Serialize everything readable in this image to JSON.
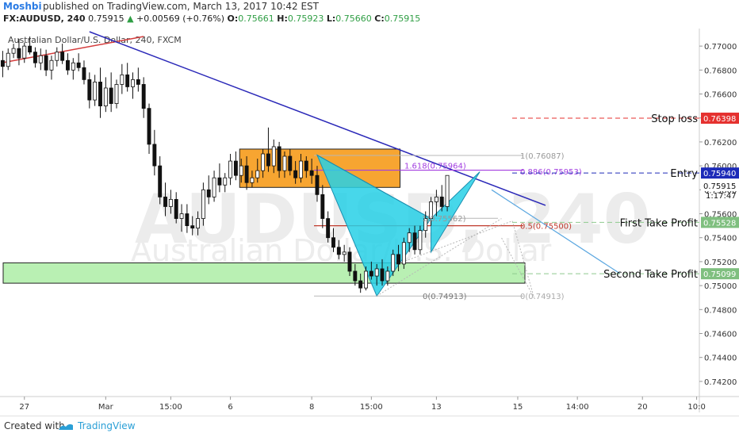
{
  "header": {
    "author": "Moshbi",
    "published": "published on TradingView.com, March 13, 2017 10:42 EST"
  },
  "ohlc": {
    "symbol": "FX:AUDUSD, 240",
    "last": "0.75915",
    "change": "+0.00569 (+0.76%)",
    "o_label": "O:",
    "o": "0.75661",
    "h_label": "H:",
    "h": "0.75923",
    "l_label": "L:",
    "l": "0.75660",
    "c_label": "C:",
    "c": "0.75915"
  },
  "footer": {
    "created": "Created with",
    "brand": "TradingView"
  },
  "chart_data": {
    "type": "candlestick",
    "title": "Australian Dollar/U.S. Dollar, 240, FXCM",
    "watermark_symbol": "AUDUSD, 240",
    "watermark_name": "Australian Dollar/U.S. Dollar",
    "ylim": [
      0.741,
      0.7712
    ],
    "yticks": [
      "0.77000",
      "0.76800",
      "0.76600",
      "0.76400",
      "0.76200",
      "0.76000",
      "0.75800",
      "0.75600",
      "0.75400",
      "0.75200",
      "0.75000",
      "0.74800",
      "0.74600",
      "0.74400",
      "0.74200"
    ],
    "ytick_values": [
      0.77,
      0.768,
      0.766,
      0.764,
      0.762,
      0.76,
      0.758,
      0.756,
      0.754,
      0.752,
      0.75,
      0.748,
      0.746,
      0.744,
      0.742
    ],
    "xticks": [
      {
        "label": "27",
        "i": 4
      },
      {
        "label": "Mar",
        "i": 19
      },
      {
        "label": "15:00",
        "i": 31
      },
      {
        "label": "6",
        "i": 42
      },
      {
        "label": "8",
        "i": 57
      },
      {
        "label": "15:00",
        "i": 68
      },
      {
        "label": "13",
        "i": 80
      },
      {
        "label": "15",
        "i": 95
      },
      {
        "label": "14:00",
        "i": 106
      },
      {
        "label": "20",
        "i": 118
      },
      {
        "label": "10:0",
        "i": 128
      }
    ],
    "n_slots": 129,
    "candles": [
      [
        0.7688,
        0.7696,
        0.7674,
        0.7683
      ],
      [
        0.7683,
        0.7698,
        0.768,
        0.7694
      ],
      [
        0.7694,
        0.7702,
        0.769,
        0.7698
      ],
      [
        0.7698,
        0.7706,
        0.7684,
        0.769
      ],
      [
        0.769,
        0.7703,
        0.7686,
        0.77
      ],
      [
        0.77,
        0.7708,
        0.7693,
        0.7695
      ],
      [
        0.7695,
        0.7699,
        0.7682,
        0.7686
      ],
      [
        0.7686,
        0.7698,
        0.768,
        0.7692
      ],
      [
        0.7692,
        0.7697,
        0.7675,
        0.768
      ],
      [
        0.768,
        0.7692,
        0.7672,
        0.7688
      ],
      [
        0.7688,
        0.7699,
        0.7683,
        0.7695
      ],
      [
        0.7695,
        0.7702,
        0.7685,
        0.7688
      ],
      [
        0.7688,
        0.7694,
        0.7676,
        0.768
      ],
      [
        0.768,
        0.769,
        0.7672,
        0.7686
      ],
      [
        0.7686,
        0.7694,
        0.7679,
        0.7682
      ],
      [
        0.7682,
        0.7688,
        0.7668,
        0.7672
      ],
      [
        0.7672,
        0.7678,
        0.7648,
        0.7655
      ],
      [
        0.7655,
        0.7676,
        0.765,
        0.767
      ],
      [
        0.767,
        0.7682,
        0.764,
        0.765
      ],
      [
        0.765,
        0.7674,
        0.7645,
        0.7665
      ],
      [
        0.7665,
        0.7678,
        0.7645,
        0.7652
      ],
      [
        0.7652,
        0.7672,
        0.7648,
        0.7668
      ],
      [
        0.7668,
        0.7685,
        0.766,
        0.7676
      ],
      [
        0.7676,
        0.7686,
        0.7662,
        0.7666
      ],
      [
        0.7666,
        0.7678,
        0.7656,
        0.7672
      ],
      [
        0.7672,
        0.7682,
        0.7662,
        0.7668
      ],
      [
        0.7668,
        0.7674,
        0.764,
        0.7648
      ],
      [
        0.7648,
        0.7652,
        0.761,
        0.7618
      ],
      [
        0.7618,
        0.763,
        0.7592,
        0.76
      ],
      [
        0.76,
        0.7608,
        0.7568,
        0.7574
      ],
      [
        0.7574,
        0.7586,
        0.7558,
        0.7566
      ],
      [
        0.7566,
        0.758,
        0.756,
        0.7572
      ],
      [
        0.7572,
        0.7578,
        0.7552,
        0.7556
      ],
      [
        0.7556,
        0.7568,
        0.7545,
        0.756
      ],
      [
        0.756,
        0.7568,
        0.7544,
        0.755
      ],
      [
        0.755,
        0.7558,
        0.7542,
        0.7548
      ],
      [
        0.7548,
        0.7562,
        0.7542,
        0.7556
      ],
      [
        0.7556,
        0.7586,
        0.755,
        0.758
      ],
      [
        0.758,
        0.7592,
        0.7568,
        0.7574
      ],
      [
        0.7574,
        0.7596,
        0.757,
        0.759
      ],
      [
        0.759,
        0.7602,
        0.7578,
        0.7584
      ],
      [
        0.7584,
        0.7594,
        0.7578,
        0.759
      ],
      [
        0.759,
        0.761,
        0.7584,
        0.7604
      ],
      [
        0.7604,
        0.7612,
        0.7588,
        0.7592
      ],
      [
        0.7592,
        0.7606,
        0.7586,
        0.76
      ],
      [
        0.76,
        0.7608,
        0.758,
        0.7586
      ],
      [
        0.7586,
        0.7596,
        0.7582,
        0.759
      ],
      [
        0.759,
        0.7606,
        0.7586,
        0.7596
      ],
      [
        0.7596,
        0.7614,
        0.759,
        0.761
      ],
      [
        0.761,
        0.7632,
        0.7595,
        0.76
      ],
      [
        0.76,
        0.7622,
        0.7594,
        0.7616
      ],
      [
        0.7616,
        0.762,
        0.759,
        0.7596
      ],
      [
        0.7596,
        0.7612,
        0.759,
        0.7608
      ],
      [
        0.7608,
        0.7614,
        0.7592,
        0.7596
      ],
      [
        0.7596,
        0.7604,
        0.7585,
        0.759
      ],
      [
        0.759,
        0.761,
        0.7586,
        0.7604
      ],
      [
        0.7604,
        0.7608,
        0.759,
        0.7596
      ],
      [
        0.7596,
        0.7606,
        0.7585,
        0.7592
      ],
      [
        0.7592,
        0.76,
        0.757,
        0.7576
      ],
      [
        0.7576,
        0.7584,
        0.7548,
        0.7556
      ],
      [
        0.7556,
        0.7562,
        0.7536,
        0.754
      ],
      [
        0.754,
        0.7548,
        0.7528,
        0.7532
      ],
      [
        0.7532,
        0.7538,
        0.7522,
        0.7526
      ],
      [
        0.7526,
        0.7534,
        0.752,
        0.7528
      ],
      [
        0.7528,
        0.7532,
        0.7508,
        0.7512
      ],
      [
        0.7512,
        0.7518,
        0.75,
        0.7504
      ],
      [
        0.7504,
        0.751,
        0.7494,
        0.7498
      ],
      [
        0.7498,
        0.7516,
        0.7496,
        0.7512
      ],
      [
        0.7512,
        0.752,
        0.7505,
        0.7508
      ],
      [
        0.7508,
        0.7518,
        0.75,
        0.7514
      ],
      [
        0.7514,
        0.7522,
        0.75,
        0.7504
      ],
      [
        0.7504,
        0.7516,
        0.75,
        0.7512
      ],
      [
        0.7512,
        0.753,
        0.7508,
        0.7526
      ],
      [
        0.7526,
        0.7534,
        0.7512,
        0.7518
      ],
      [
        0.7518,
        0.754,
        0.7514,
        0.7536
      ],
      [
        0.7536,
        0.7548,
        0.7528,
        0.7544
      ],
      [
        0.7544,
        0.755,
        0.7526,
        0.753
      ],
      [
        0.753,
        0.755,
        0.7526,
        0.7546
      ],
      [
        0.7546,
        0.7562,
        0.754,
        0.7556
      ],
      [
        0.7556,
        0.7574,
        0.755,
        0.757
      ],
      [
        0.757,
        0.758,
        0.7558,
        0.7574
      ],
      [
        0.7574,
        0.7584,
        0.7562,
        0.7566
      ],
      [
        0.7566,
        0.7592,
        0.7562,
        0.7592
      ]
    ],
    "offset_slot": 0,
    "bull_color": "#ffffff",
    "bear_color": "#111111",
    "right_axis_labels": [
      {
        "text": "Stop loss",
        "value": 0.76398,
        "price": "0.76398",
        "color": "#e5312f",
        "badge": "#e5312f"
      },
      {
        "text": "Entry",
        "value": 0.7594,
        "price": "0.75940",
        "color": "#1d2bb8",
        "badge": "#1d2bb8"
      },
      {
        "text": "First Take Profit",
        "value": 0.75528,
        "price": "0.75528",
        "color": "#8fc98f",
        "badge": "#7fbf7f"
      },
      {
        "text": "Second Take Profit",
        "value": 0.75099,
        "price": "0.75099",
        "color": "#8fc98f",
        "badge": "#7fbf7f"
      }
    ],
    "current_price": {
      "price": "0.75915",
      "value": 0.75915
    },
    "countdown": "1:17:47",
    "fib_labels": [
      {
        "text": "1(0.76087)",
        "value": 0.76087
      },
      {
        "text": "1.618(0.75964)",
        "value": 0.75964
      },
      {
        "text": "0.886(0.75953)",
        "value": 0.75953
      },
      {
        "text": "1(0.75562)",
        "value": 0.75562
      },
      {
        "text": "0.5(0.75500)",
        "value": 0.755
      },
      {
        "text": "0(0.74913)",
        "value": 0.74913
      },
      {
        "text": "0(0.74913)",
        "value": 0.74913
      }
    ],
    "colors": {
      "trendline": "#2a28b8",
      "orange_box": "#f7a531",
      "green_box": "#b9f0b3",
      "pattern": "#27d0e6",
      "stop": "#e5312f",
      "entry": "#1d2bb8",
      "tp": "#8fc98f",
      "fib_grey": "#b7b7b7",
      "fib_purple": "#a23de0",
      "fib_red": "#c0392b",
      "projection": "#5ba7e0"
    }
  }
}
